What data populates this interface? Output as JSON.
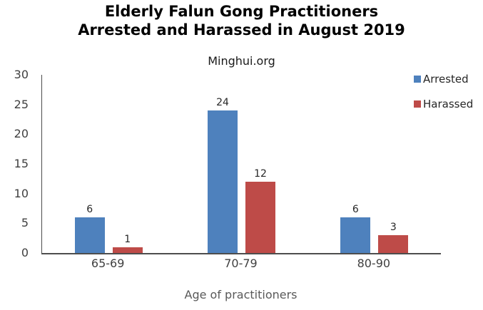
{
  "title": {
    "line1": "Elderly Falun Gong Practitioners",
    "line2": "Arrested and Harassed in August 2019"
  },
  "subtitle": "Minghui.org",
  "chart_data": {
    "type": "bar",
    "title": "Elderly Falun Gong Practitioners Arrested and Harassed in August 2019",
    "subtitle": "Minghui.org",
    "categories": [
      "65-69",
      "70-79",
      "80-90"
    ],
    "series": [
      {
        "name": "Arrested",
        "color": "#4E81BD",
        "values": [
          6,
          24,
          6
        ]
      },
      {
        "name": "Harassed",
        "color": "#BE4B48",
        "values": [
          1,
          12,
          3
        ]
      }
    ],
    "xlabel": "Age of practitioners",
    "ylabel": "",
    "ylim": [
      0,
      30
    ],
    "yticks": [
      0,
      5,
      10,
      15,
      20,
      25,
      30
    ],
    "grid": false,
    "data_labels": true,
    "legend_position": "top-right"
  },
  "colors": {
    "axis_line": "#4d4d4d",
    "tick_text": "#404040",
    "category_text": "#404040",
    "axis_title_text": "#595959",
    "data_label_text": "#262626",
    "title_text": "#000000"
  }
}
